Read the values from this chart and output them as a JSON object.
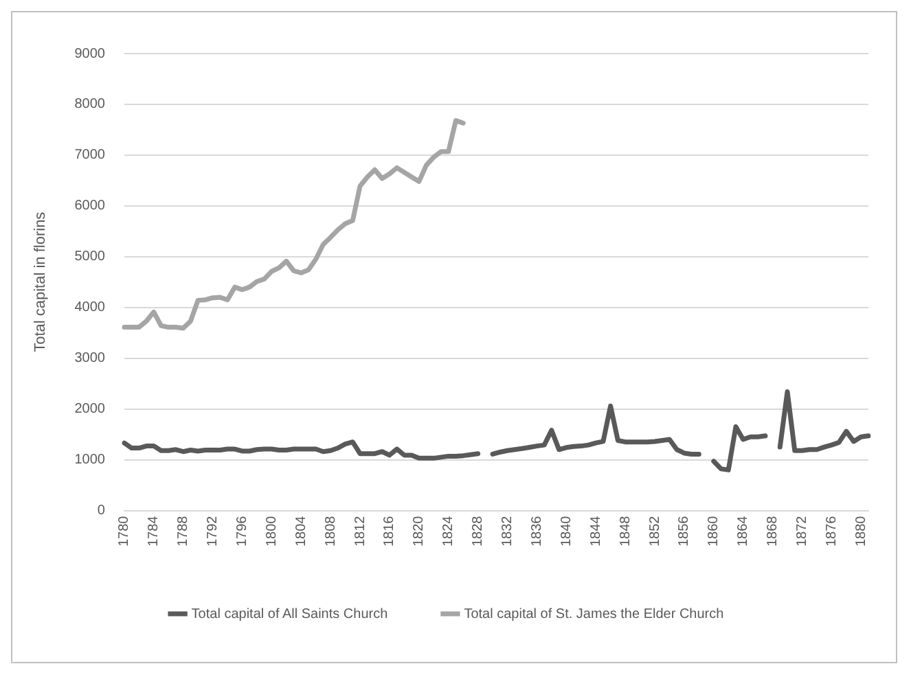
{
  "chart_data": {
    "type": "line",
    "ylabel": "Total capital in florins",
    "categories": [
      "1780",
      null,
      null,
      null,
      "1784",
      null,
      null,
      null,
      "1788",
      null,
      null,
      null,
      "1792",
      null,
      null,
      null,
      "1796",
      null,
      null,
      null,
      "1800",
      null,
      null,
      null,
      "1804",
      null,
      null,
      null,
      "1808",
      null,
      null,
      null,
      "1812",
      null,
      null,
      null,
      "1816",
      null,
      null,
      null,
      "1820",
      null,
      null,
      null,
      "1824",
      null,
      null,
      null,
      "1828",
      null,
      null,
      null,
      "1832",
      null,
      null,
      null,
      "1836",
      null,
      null,
      null,
      "1840",
      null,
      null,
      null,
      "1844",
      null,
      null,
      null,
      "1848",
      null,
      null,
      null,
      "1852",
      null,
      null,
      null,
      "1856",
      null,
      null,
      null,
      "1860",
      null,
      null,
      null,
      "1864",
      null,
      null,
      null,
      "1868",
      null,
      null,
      null,
      "1872",
      null,
      null,
      null,
      "1876",
      null,
      null,
      null,
      "1880",
      null
    ],
    "series": [
      {
        "name": "Total capital of All Saints Church",
        "color": "#595959",
        "values": [
          1330,
          1230,
          1230,
          1270,
          1270,
          1180,
          1180,
          1200,
          1160,
          1190,
          1170,
          1190,
          1190,
          1190,
          1210,
          1210,
          1170,
          1170,
          1200,
          1210,
          1210,
          1190,
          1190,
          1210,
          1210,
          1210,
          1210,
          1160,
          1180,
          1230,
          1310,
          1350,
          1120,
          1120,
          1120,
          1160,
          1090,
          1210,
          1090,
          1090,
          1030,
          1030,
          1030,
          1050,
          1070,
          1070,
          1080,
          1100,
          1120,
          null,
          1110,
          1150,
          1180,
          1200,
          1220,
          1245,
          1270,
          1290,
          1580,
          1200,
          1240,
          1260,
          1270,
          1290,
          1330,
          1360,
          2060,
          1380,
          1350,
          1350,
          1350,
          1350,
          1360,
          1380,
          1400,
          1200,
          1130,
          1110,
          1110,
          null,
          970,
          820,
          800,
          1650,
          1400,
          1450,
          1450,
          1470,
          null,
          1250,
          2340,
          1180,
          1180,
          1200,
          1200,
          1250,
          1290,
          1340,
          1560,
          1360,
          1450,
          1470
        ]
      },
      {
        "name": "Total capital of St. James the Elder Church",
        "color": "#a5a5a5",
        "values": [
          3610,
          3610,
          3610,
          3730,
          3910,
          3640,
          3610,
          3610,
          3590,
          3730,
          4140,
          4150,
          4190,
          4200,
          4150,
          4400,
          4350,
          4400,
          4510,
          4560,
          4710,
          4780,
          4910,
          4720,
          4680,
          4740,
          4950,
          5240,
          5380,
          5530,
          5650,
          5710,
          6390,
          6570,
          6710,
          6540,
          6630,
          6750,
          6660,
          6570,
          6480,
          6800,
          6960,
          7070,
          7070,
          7680,
          7630,
          null,
          null,
          null,
          null,
          null,
          null,
          null,
          null,
          null,
          null,
          null,
          null,
          null,
          null,
          null,
          null,
          null,
          null,
          null,
          null,
          null,
          null,
          null,
          null,
          null,
          null,
          null,
          null,
          null,
          null,
          null,
          null,
          null,
          null,
          null,
          null,
          null,
          null,
          null,
          null,
          null,
          null,
          null,
          null,
          null,
          null,
          null,
          null,
          null,
          null,
          null,
          null,
          null,
          null,
          null
        ]
      }
    ],
    "ylim": [
      0,
      9000
    ],
    "yticks": [
      0,
      1000,
      2000,
      3000,
      4000,
      5000,
      6000,
      7000,
      8000,
      9000
    ],
    "grid": "y",
    "legend": "bottom",
    "marker": "none",
    "line_style": "solid"
  }
}
